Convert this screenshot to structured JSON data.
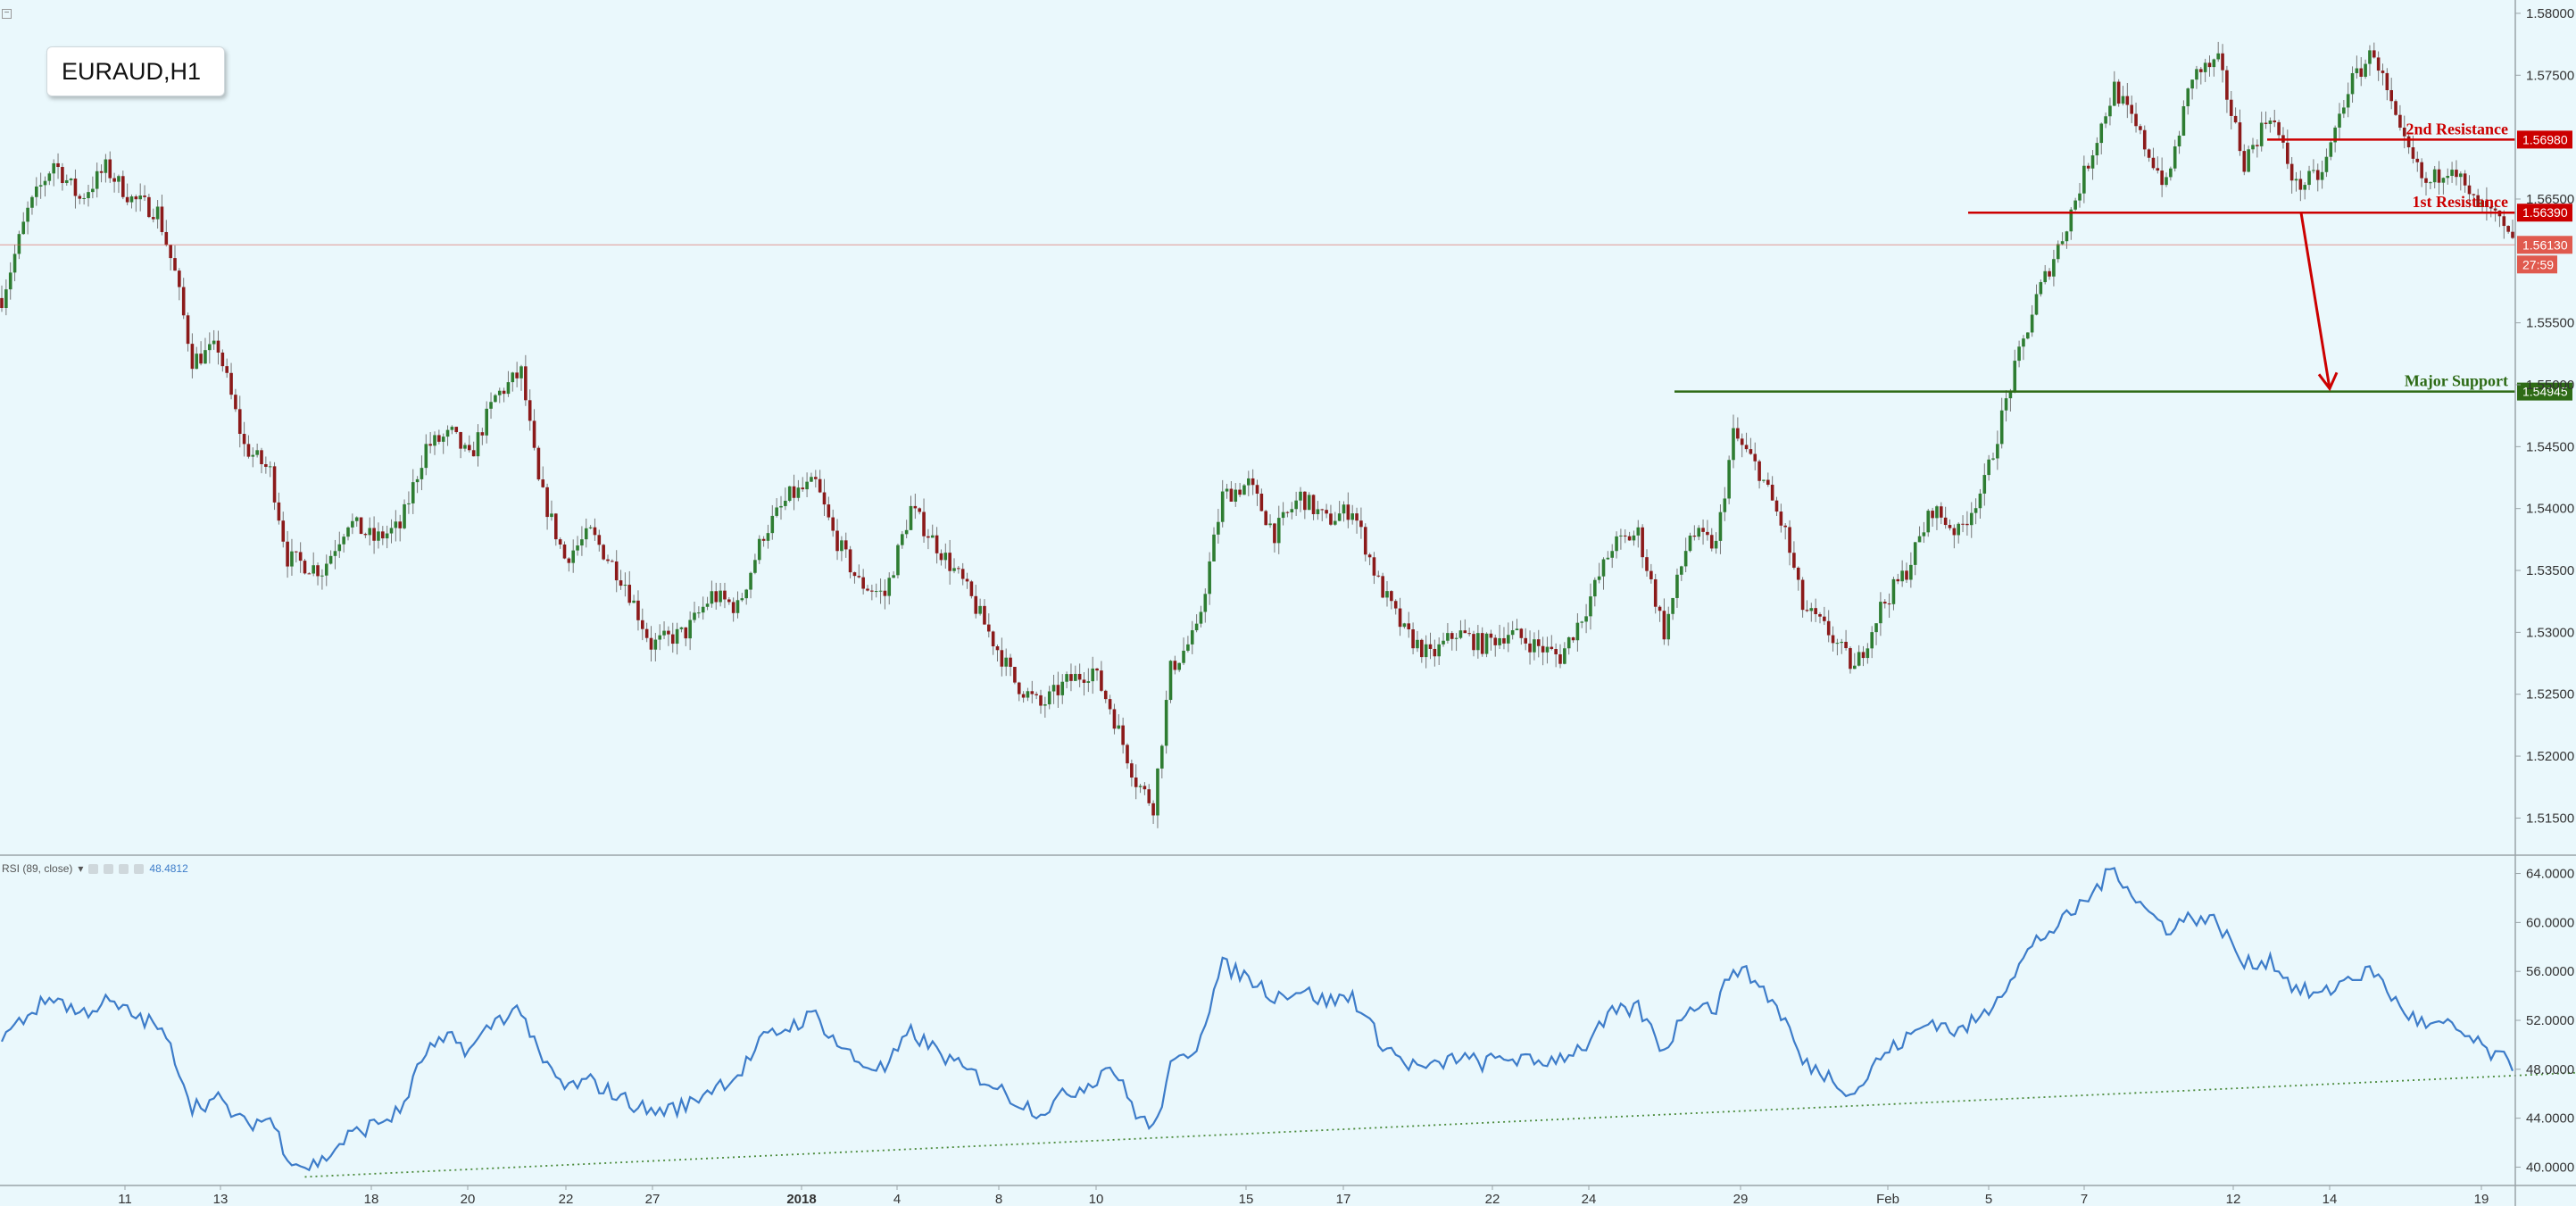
{
  "symbol_label": "EURAUD,H1",
  "rsi_legend": {
    "label": "RSI (89, close)",
    "value": "48.4812"
  },
  "colors": {
    "background": "#eaf8fc",
    "candle_up": "#2e7d32",
    "candle_down": "#8b1a1a",
    "resistance": "#cc0000",
    "support": "#2e6b16",
    "rsi_line": "#3d7cc9",
    "trendline": "#4a8a3a",
    "current_price": "#e05a4e"
  },
  "chart_data": [
    {
      "type": "candlestick",
      "title": "EURAUD,H1",
      "ylim": [
        1.512,
        1.5805
      ],
      "y_ticks": [
        "1.58000",
        "1.57500",
        "1.56500",
        "1.55500",
        "1.55000",
        "1.54500",
        "1.54000",
        "1.53500",
        "1.53000",
        "1.52500",
        "1.52000",
        "1.51500"
      ],
      "x_ticks": [
        "11",
        "13",
        "18",
        "20",
        "22",
        "27",
        "2018",
        "4",
        "8",
        "10",
        "15",
        "17",
        "22",
        "24",
        "29",
        "Feb",
        "5",
        "7",
        "12",
        "14",
        "19"
      ],
      "bold_x_ticks": [
        "2018"
      ],
      "price_path": [
        {
          "i": 0,
          "p": 1.557
        },
        {
          "i": 3,
          "p": 1.564
        },
        {
          "i": 6,
          "p": 1.568
        },
        {
          "i": 9,
          "p": 1.565
        },
        {
          "i": 12,
          "p": 1.5675
        },
        {
          "i": 15,
          "p": 1.565
        },
        {
          "i": 18,
          "p": 1.564
        },
        {
          "i": 20,
          "p": 1.559
        },
        {
          "i": 22,
          "p": 1.552
        },
        {
          "i": 25,
          "p": 1.553
        },
        {
          "i": 28,
          "p": 1.545
        },
        {
          "i": 31,
          "p": 1.543
        },
        {
          "i": 33,
          "p": 1.536
        },
        {
          "i": 37,
          "p": 1.535
        },
        {
          "i": 40,
          "p": 1.539
        },
        {
          "i": 43,
          "p": 1.5375
        },
        {
          "i": 46,
          "p": 1.5385
        },
        {
          "i": 49,
          "p": 1.545
        },
        {
          "i": 52,
          "p": 1.546
        },
        {
          "i": 54,
          "p": 1.544
        },
        {
          "i": 57,
          "p": 1.549
        },
        {
          "i": 60,
          "p": 1.551
        },
        {
          "i": 62,
          "p": 1.542
        },
        {
          "i": 65,
          "p": 1.536
        },
        {
          "i": 68,
          "p": 1.538
        },
        {
          "i": 72,
          "p": 1.534
        },
        {
          "i": 75,
          "p": 1.529
        },
        {
          "i": 79,
          "p": 1.53
        },
        {
          "i": 82,
          "p": 1.533
        },
        {
          "i": 85,
          "p": 1.532
        },
        {
          "i": 88,
          "p": 1.538
        },
        {
          "i": 91,
          "p": 1.541
        },
        {
          "i": 94,
          "p": 1.542
        },
        {
          "i": 96,
          "p": 1.538
        },
        {
          "i": 99,
          "p": 1.534
        },
        {
          "i": 102,
          "p": 1.533
        },
        {
          "i": 105,
          "p": 1.54
        },
        {
          "i": 108,
          "p": 1.537
        },
        {
          "i": 111,
          "p": 1.534
        },
        {
          "i": 114,
          "p": 1.53
        },
        {
          "i": 117,
          "p": 1.526
        },
        {
          "i": 120,
          "p": 1.524
        },
        {
          "i": 123,
          "p": 1.526
        },
        {
          "i": 126,
          "p": 1.527
        },
        {
          "i": 128,
          "p": 1.524
        },
        {
          "i": 131,
          "p": 1.518
        },
        {
          "i": 133,
          "p": 1.516
        },
        {
          "i": 135,
          "p": 1.527
        },
        {
          "i": 138,
          "p": 1.53
        },
        {
          "i": 141,
          "p": 1.541
        },
        {
          "i": 144,
          "p": 1.542
        },
        {
          "i": 147,
          "p": 1.538
        },
        {
          "i": 150,
          "p": 1.541
        },
        {
          "i": 153,
          "p": 1.539
        },
        {
          "i": 156,
          "p": 1.54
        },
        {
          "i": 159,
          "p": 1.534
        },
        {
          "i": 162,
          "p": 1.53
        },
        {
          "i": 165,
          "p": 1.528
        },
        {
          "i": 168,
          "p": 1.53
        },
        {
          "i": 171,
          "p": 1.529
        },
        {
          "i": 174,
          "p": 1.53
        },
        {
          "i": 177,
          "p": 1.529
        },
        {
          "i": 180,
          "p": 1.528
        },
        {
          "i": 183,
          "p": 1.532
        },
        {
          "i": 186,
          "p": 1.537
        },
        {
          "i": 189,
          "p": 1.538
        },
        {
          "i": 192,
          "p": 1.53
        },
        {
          "i": 195,
          "p": 1.538
        },
        {
          "i": 198,
          "p": 1.537
        },
        {
          "i": 200,
          "p": 1.546
        },
        {
          "i": 203,
          "p": 1.543
        },
        {
          "i": 206,
          "p": 1.538
        },
        {
          "i": 208,
          "p": 1.532
        },
        {
          "i": 211,
          "p": 1.53
        },
        {
          "i": 214,
          "p": 1.527
        },
        {
          "i": 217,
          "p": 1.532
        },
        {
          "i": 220,
          "p": 1.535
        },
        {
          "i": 223,
          "p": 1.54
        },
        {
          "i": 226,
          "p": 1.538
        },
        {
          "i": 229,
          "p": 1.542
        },
        {
          "i": 232,
          "p": 1.55
        },
        {
          "i": 235,
          "p": 1.557
        },
        {
          "i": 238,
          "p": 1.562
        },
        {
          "i": 241,
          "p": 1.568
        },
        {
          "i": 244,
          "p": 1.574
        },
        {
          "i": 247,
          "p": 1.57
        },
        {
          "i": 250,
          "p": 1.566
        },
        {
          "i": 253,
          "p": 1.575
        },
        {
          "i": 256,
          "p": 1.576
        },
        {
          "i": 259,
          "p": 1.568
        },
        {
          "i": 262,
          "p": 1.572
        },
        {
          "i": 265,
          "p": 1.566
        },
        {
          "i": 268,
          "p": 1.567
        },
        {
          "i": 271,
          "p": 1.574
        },
        {
          "i": 274,
          "p": 1.577
        },
        {
          "i": 277,
          "p": 1.57
        },
        {
          "i": 280,
          "p": 1.566
        },
        {
          "i": 283,
          "p": 1.568
        },
        {
          "i": 285,
          "p": 1.565
        },
        {
          "i": 288,
          "p": 1.5635
        },
        {
          "i": 290,
          "p": 1.5613
        }
      ],
      "current_price": "1.56130",
      "countdown": "27:59",
      "levels": [
        {
          "name": "2nd Resistance",
          "label": "2nd Resistance",
          "price_label": "1.56980",
          "price": 1.5698,
          "color": "#cc0000"
        },
        {
          "name": "1st Resistance",
          "label": "1st Resistance",
          "price_label": "1.56390",
          "price": 1.5639,
          "color": "#cc0000"
        },
        {
          "name": "Major Support",
          "label": "Major Support",
          "price_label": "1.54945",
          "price": 1.54945,
          "color": "#2e6b16"
        }
      ],
      "projection_arrow": {
        "from_price": 1.5639,
        "to_price": 1.5494
      }
    },
    {
      "type": "line",
      "title": "RSI (89, close)",
      "current_value": 48.4812,
      "ylim": [
        38.5,
        65.5
      ],
      "y_ticks": [
        "64.0000",
        "60.0000",
        "56.0000",
        "52.0000",
        "48.0000",
        "44.0000",
        "40.0000"
      ],
      "path": [
        {
          "i": 0,
          "v": 50.5
        },
        {
          "i": 3,
          "v": 52.5
        },
        {
          "i": 6,
          "v": 54.0
        },
        {
          "i": 9,
          "v": 52.5
        },
        {
          "i": 12,
          "v": 53.5
        },
        {
          "i": 15,
          "v": 52.5
        },
        {
          "i": 18,
          "v": 51.5
        },
        {
          "i": 20,
          "v": 49.0
        },
        {
          "i": 22,
          "v": 45.0
        },
        {
          "i": 25,
          "v": 45.5
        },
        {
          "i": 28,
          "v": 43.5
        },
        {
          "i": 31,
          "v": 44.0
        },
        {
          "i": 33,
          "v": 41.0
        },
        {
          "i": 35,
          "v": 40.0
        },
        {
          "i": 37,
          "v": 40.5
        },
        {
          "i": 40,
          "v": 42.5
        },
        {
          "i": 43,
          "v": 43.5
        },
        {
          "i": 46,
          "v": 44.5
        },
        {
          "i": 49,
          "v": 49.5
        },
        {
          "i": 52,
          "v": 50.5
        },
        {
          "i": 54,
          "v": 49.5
        },
        {
          "i": 57,
          "v": 52.0
        },
        {
          "i": 60,
          "v": 53.0
        },
        {
          "i": 62,
          "v": 49.0
        },
        {
          "i": 65,
          "v": 46.5
        },
        {
          "i": 68,
          "v": 47.0
        },
        {
          "i": 72,
          "v": 45.5
        },
        {
          "i": 75,
          "v": 44.5
        },
        {
          "i": 79,
          "v": 45.0
        },
        {
          "i": 82,
          "v": 46.5
        },
        {
          "i": 85,
          "v": 47.5
        },
        {
          "i": 88,
          "v": 50.5
        },
        {
          "i": 91,
          "v": 51.5
        },
        {
          "i": 94,
          "v": 52.5
        },
        {
          "i": 96,
          "v": 50.5
        },
        {
          "i": 99,
          "v": 48.5
        },
        {
          "i": 102,
          "v": 48.0
        },
        {
          "i": 105,
          "v": 51.0
        },
        {
          "i": 108,
          "v": 49.5
        },
        {
          "i": 111,
          "v": 48.0
        },
        {
          "i": 114,
          "v": 47.0
        },
        {
          "i": 117,
          "v": 45.5
        },
        {
          "i": 120,
          "v": 44.5
        },
        {
          "i": 123,
          "v": 46.0
        },
        {
          "i": 126,
          "v": 47.0
        },
        {
          "i": 128,
          "v": 48.5
        },
        {
          "i": 131,
          "v": 44.5
        },
        {
          "i": 133,
          "v": 43.0
        },
        {
          "i": 135,
          "v": 48.0
        },
        {
          "i": 138,
          "v": 50.0
        },
        {
          "i": 141,
          "v": 56.5
        },
        {
          "i": 144,
          "v": 55.5
        },
        {
          "i": 147,
          "v": 54.0
        },
        {
          "i": 150,
          "v": 54.5
        },
        {
          "i": 153,
          "v": 53.5
        },
        {
          "i": 156,
          "v": 54.0
        },
        {
          "i": 159,
          "v": 50.5
        },
        {
          "i": 162,
          "v": 48.5
        },
        {
          "i": 165,
          "v": 48.0
        },
        {
          "i": 168,
          "v": 49.0
        },
        {
          "i": 171,
          "v": 48.5
        },
        {
          "i": 174,
          "v": 49.0
        },
        {
          "i": 177,
          "v": 48.5
        },
        {
          "i": 180,
          "v": 49.0
        },
        {
          "i": 183,
          "v": 50.0
        },
        {
          "i": 186,
          "v": 52.5
        },
        {
          "i": 189,
          "v": 53.0
        },
        {
          "i": 192,
          "v": 49.5
        },
        {
          "i": 195,
          "v": 53.5
        },
        {
          "i": 198,
          "v": 53.0
        },
        {
          "i": 200,
          "v": 56.5
        },
        {
          "i": 203,
          "v": 55.0
        },
        {
          "i": 206,
          "v": 52.0
        },
        {
          "i": 208,
          "v": 48.5
        },
        {
          "i": 211,
          "v": 47.5
        },
        {
          "i": 214,
          "v": 46.0
        },
        {
          "i": 217,
          "v": 49.0
        },
        {
          "i": 220,
          "v": 50.5
        },
        {
          "i": 223,
          "v": 52.0
        },
        {
          "i": 226,
          "v": 51.0
        },
        {
          "i": 229,
          "v": 52.5
        },
        {
          "i": 232,
          "v": 55.5
        },
        {
          "i": 235,
          "v": 58.5
        },
        {
          "i": 238,
          "v": 60.0
        },
        {
          "i": 241,
          "v": 62.0
        },
        {
          "i": 244,
          "v": 64.5
        },
        {
          "i": 247,
          "v": 61.5
        },
        {
          "i": 250,
          "v": 59.5
        },
        {
          "i": 253,
          "v": 60.5
        },
        {
          "i": 256,
          "v": 60.0
        },
        {
          "i": 259,
          "v": 56.5
        },
        {
          "i": 262,
          "v": 57.0
        },
        {
          "i": 265,
          "v": 54.5
        },
        {
          "i": 268,
          "v": 54.0
        },
        {
          "i": 271,
          "v": 55.5
        },
        {
          "i": 274,
          "v": 56.0
        },
        {
          "i": 277,
          "v": 53.0
        },
        {
          "i": 280,
          "v": 51.5
        },
        {
          "i": 283,
          "v": 51.5
        },
        {
          "i": 285,
          "v": 50.5
        },
        {
          "i": 288,
          "v": 49.0
        },
        {
          "i": 290,
          "v": 48.48
        }
      ],
      "trendline": {
        "from": {
          "i": 35,
          "v": 39.2
        },
        "to": {
          "i": 300,
          "v": 47.8
        }
      }
    }
  ]
}
